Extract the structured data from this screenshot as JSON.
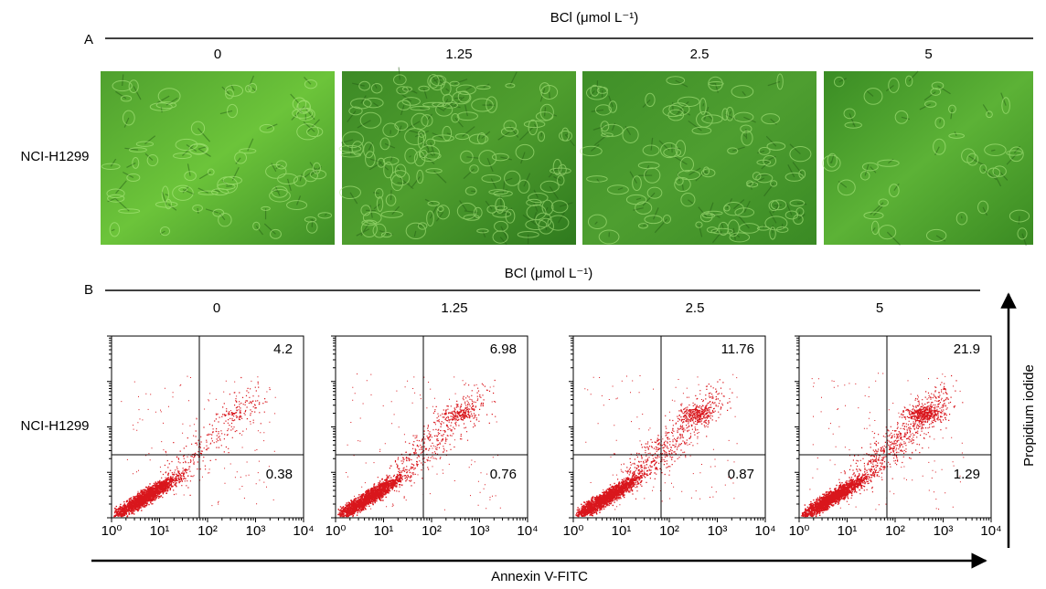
{
  "panel_a": {
    "label": "A",
    "header": "BCl (μmol L⁻¹)",
    "concentrations": [
      "0",
      "1.25",
      "2.5",
      "5"
    ],
    "row_label": "NCI-H1299"
  },
  "panel_b": {
    "label": "B",
    "header": "BCl (μmol L⁻¹)",
    "concentrations": [
      "0",
      "1.25",
      "2.5",
      "5"
    ],
    "row_label": "NCI-H1299",
    "plots": [
      {
        "upper_right": 4.2,
        "lower_right": 0.38
      },
      {
        "upper_right": 6.98,
        "lower_right": 0.76
      },
      {
        "upper_right": 11.76,
        "lower_right": 0.87
      },
      {
        "upper_right": 21.9,
        "lower_right": 1.29
      }
    ],
    "x_tick_labels": [
      "10⁰",
      "10¹",
      "10²",
      "10³",
      "10⁴"
    ],
    "y_axis_label": "Propidium iodide",
    "x_axis_label": "Annexin V-FITC"
  }
}
